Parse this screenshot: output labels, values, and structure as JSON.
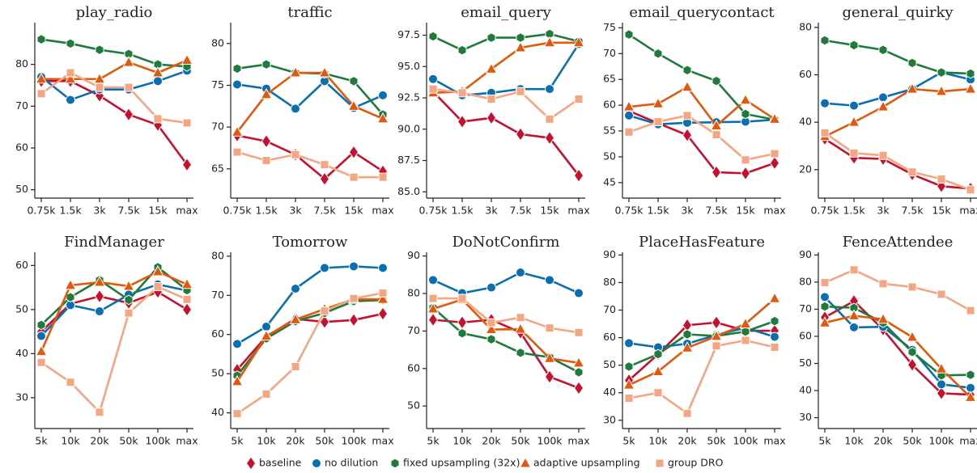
{
  "legend": [
    {
      "name": "baseline",
      "color": "#c8102e",
      "marker": "diamond"
    },
    {
      "name": "no dilution",
      "color": "#0a6fb0",
      "marker": "circle"
    },
    {
      "name": "fixed upsampling (32x)",
      "color": "#1f7a3c",
      "marker": "hexagon"
    },
    {
      "name": "adaptive upsampling",
      "color": "#e2580c",
      "marker": "triangle"
    },
    {
      "name": "group DRO",
      "color": "#f4a582",
      "marker": "square"
    }
  ],
  "chart_data": [
    {
      "type": "line",
      "title": "play_radio",
      "categories": [
        "0.75k",
        "1.5k",
        "3k",
        "7.5k",
        "15k",
        "max"
      ],
      "ylim": [
        48,
        90
      ],
      "yticks": [
        50,
        60,
        70,
        80
      ],
      "series": [
        {
          "values": [
            76,
            76,
            72.5,
            68,
            65.5,
            56
          ]
        },
        {
          "values": [
            77,
            71.5,
            74,
            74,
            76,
            78.5
          ]
        },
        {
          "values": [
            86,
            85,
            83.5,
            82.5,
            80,
            79.5
          ]
        },
        {
          "values": [
            76.5,
            76.5,
            76.5,
            80.5,
            78,
            81
          ]
        },
        {
          "values": [
            73,
            78,
            74.5,
            74.5,
            67,
            66
          ]
        }
      ]
    },
    {
      "type": "line",
      "title": "traffic",
      "categories": [
        "0.75k",
        "1.5k",
        "3k",
        "7.5k",
        "15k",
        "max"
      ],
      "ylim": [
        61.5,
        82.5
      ],
      "yticks": [
        65,
        70,
        75,
        80
      ],
      "series": [
        {
          "values": [
            69,
            68.3,
            66.7,
            63.8,
            67,
            64.7
          ]
        },
        {
          "values": [
            75.1,
            74.6,
            72.2,
            75.5,
            72.3,
            73.8
          ]
        },
        {
          "values": [
            77,
            77.5,
            76.5,
            76.4,
            75.5,
            71.5
          ]
        },
        {
          "values": [
            69.4,
            73.9,
            76.5,
            76.5,
            72.5,
            71
          ]
        },
        {
          "values": [
            67,
            66,
            66.7,
            65.5,
            64,
            64
          ]
        }
      ]
    },
    {
      "type": "line",
      "title": "email_query",
      "categories": [
        "0.75k",
        "1.5k",
        "3k",
        "7.5k",
        "15k",
        "max"
      ],
      "ylim": [
        84.5,
        98.5
      ],
      "yticks": [
        {
          "value": 85,
          "label": "85.0"
        },
        87.5,
        {
          "value": 90,
          "label": "90.0"
        },
        92.5,
        {
          "value": 95,
          "label": "95.0"
        },
        97.5
      ],
      "series": [
        {
          "values": [
            93,
            90.6,
            90.9,
            89.6,
            89.3,
            86.3
          ]
        },
        {
          "values": [
            94,
            92.7,
            92.9,
            93.2,
            93.2,
            96.8
          ]
        },
        {
          "values": [
            97.4,
            96.3,
            97.3,
            97.3,
            97.6,
            97
          ]
        },
        {
          "values": [
            92.9,
            93,
            94.8,
            96.5,
            96.9,
            96.9
          ]
        },
        {
          "values": [
            93.2,
            92.9,
            92.4,
            93,
            90.8,
            92.4
          ]
        }
      ]
    },
    {
      "type": "line",
      "title": "email_querycontact",
      "categories": [
        "0.75k",
        "1.5k",
        "3k",
        "7.5k",
        "15k",
        "max"
      ],
      "ylim": [
        42,
        76
      ],
      "yticks": [
        45,
        50,
        55,
        60,
        65,
        70,
        75
      ],
      "series": [
        {
          "values": [
            58.9,
            56.5,
            54.2,
            47,
            46.8,
            48.8
          ]
        },
        {
          "values": [
            58,
            56.3,
            56.6,
            56.7,
            56.8,
            57.2
          ]
        },
        {
          "values": [
            73.7,
            70,
            66.8,
            64.7,
            58.3,
            57.2
          ]
        },
        {
          "values": [
            59.7,
            60.3,
            63.5,
            56,
            61,
            57.3
          ]
        },
        {
          "values": [
            54.8,
            56.8,
            58,
            54.3,
            49.4,
            50.6
          ]
        }
      ]
    },
    {
      "type": "line",
      "title": "general_quirky",
      "categories": [
        "0.75k",
        "1.5k",
        "3k",
        "7.5k",
        "15k",
        "max"
      ],
      "ylim": [
        8,
        82
      ],
      "yticks": [
        20,
        40,
        60,
        80
      ],
      "series": [
        {
          "values": [
            33,
            25,
            24.5,
            18,
            13,
            12
          ]
        },
        {
          "values": [
            48,
            47,
            50.5,
            54,
            61,
            58
          ]
        },
        {
          "values": [
            74.5,
            72.5,
            70.5,
            65,
            61,
            60.5
          ]
        },
        {
          "values": [
            34,
            40,
            46.5,
            54,
            53,
            54
          ]
        },
        {
          "values": [
            35.5,
            27,
            26,
            19,
            16,
            11.5
          ]
        }
      ]
    },
    {
      "type": "line",
      "title": "FindManager",
      "categories": [
        "5k",
        "10k",
        "20k",
        "50k",
        "100k",
        "max"
      ],
      "ylim": [
        23,
        63
      ],
      "yticks": [
        30,
        40,
        50,
        60
      ],
      "series": [
        {
          "values": [
            45,
            51.3,
            53,
            51.5,
            54,
            50
          ]
        },
        {
          "values": [
            44,
            51,
            49.6,
            53.4,
            55.7,
            54.3
          ]
        },
        {
          "values": [
            46.5,
            52.8,
            56.7,
            52.2,
            59.6,
            54.4
          ]
        },
        {
          "values": [
            40.5,
            55.5,
            56.2,
            55.3,
            58.6,
            55.7
          ]
        },
        {
          "values": [
            38,
            33.5,
            26.7,
            49.2,
            55.2,
            52.3
          ]
        }
      ]
    },
    {
      "type": "line",
      "title": "Tomorrow",
      "categories": [
        "5k",
        "10k",
        "20k",
        "50k",
        "100k",
        "max"
      ],
      "ylim": [
        36,
        81
      ],
      "yticks": [
        40,
        50,
        60,
        70,
        80
      ],
      "series": [
        {
          "values": [
            51,
            59.5,
            64,
            63.2,
            63.7,
            65.3
          ]
        },
        {
          "values": [
            57.6,
            62,
            71.7,
            77,
            77.4,
            77
          ]
        },
        {
          "values": [
            49.5,
            59,
            63.4,
            65.5,
            68.5,
            68.8
          ]
        },
        {
          "values": [
            48,
            59.6,
            63.8,
            66.5,
            69,
            69
          ]
        },
        {
          "values": [
            39.8,
            44.8,
            51.8,
            66,
            69.2,
            70.6
          ]
        }
      ]
    },
    {
      "type": "line",
      "title": "DoNotConfirm",
      "categories": [
        "5k",
        "10k",
        "20k",
        "50k",
        "100k",
        "max"
      ],
      "ylim": [
        44,
        91
      ],
      "yticks": [
        50,
        60,
        70,
        80,
        90
      ],
      "series": [
        {
          "values": [
            73,
            72.3,
            73,
            69.6,
            57.8,
            54.8
          ]
        },
        {
          "values": [
            83.6,
            80.1,
            81.6,
            85.6,
            83.6,
            80.1
          ]
        },
        {
          "values": [
            76.2,
            69.4,
            67.8,
            64.2,
            63,
            59
          ]
        },
        {
          "values": [
            75.9,
            78.4,
            70.4,
            70.5,
            62.7,
            61.5
          ]
        },
        {
          "values": [
            78.7,
            78.7,
            72.2,
            73.6,
            70.8,
            69.6
          ]
        }
      ]
    },
    {
      "type": "line",
      "title": "PlaceHasFeature",
      "categories": [
        "5k",
        "10k",
        "20k",
        "50k",
        "100k",
        "max"
      ],
      "ylim": [
        27,
        91
      ],
      "yticks": [
        30,
        40,
        50,
        60,
        70,
        80,
        90
      ],
      "series": [
        {
          "values": [
            44.5,
            54,
            64.5,
            65.5,
            62.5,
            62.5
          ]
        },
        {
          "values": [
            58,
            56.5,
            57.8,
            61,
            63.6,
            60.3
          ]
        },
        {
          "values": [
            49.5,
            54,
            61.2,
            60.6,
            62.2,
            66
          ]
        },
        {
          "values": [
            42.8,
            47.7,
            56.3,
            60.5,
            65,
            74.2
          ]
        },
        {
          "values": [
            38,
            40,
            32.5,
            57,
            59,
            56.5
          ]
        }
      ]
    },
    {
      "type": "line",
      "title": "FenceAttendee",
      "categories": [
        "5k",
        "10k",
        "20k",
        "50k",
        "100k",
        "max"
      ],
      "ylim": [
        26,
        91
      ],
      "yticks": [
        30,
        40,
        50,
        60,
        70,
        80,
        90
      ],
      "series": [
        {
          "values": [
            67,
            73,
            62.5,
            49.5,
            39,
            38.5
          ]
        },
        {
          "values": [
            74.5,
            63.3,
            63.5,
            55,
            42.3,
            41
          ]
        },
        {
          "values": [
            71,
            70.5,
            65,
            54.2,
            45.6,
            45.8
          ]
        },
        {
          "values": [
            65,
            67.6,
            66.3,
            59.7,
            48,
            37.5
          ]
        },
        {
          "values": [
            79.8,
            84.5,
            79.4,
            78.2,
            75.5,
            69.5
          ]
        }
      ]
    }
  ]
}
